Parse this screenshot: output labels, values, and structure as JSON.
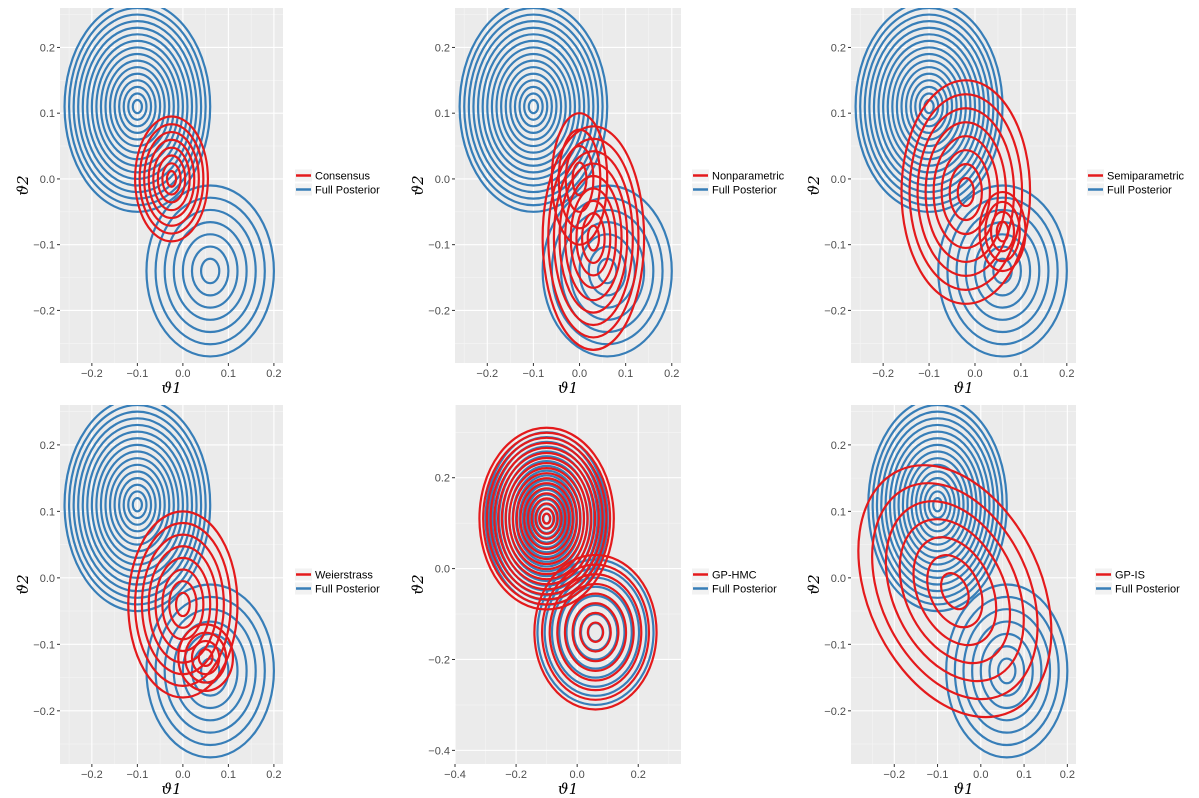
{
  "colors": {
    "method": "#e41a1c",
    "full_posterior": "#377eb8",
    "panel_bg": "#ebebeb",
    "grid_major": "#ffffff",
    "grid_minor": "#f5f5f5"
  },
  "chart_data": [
    {
      "type": "contour",
      "xlabel": "ϑ1",
      "ylabel": "ϑ2",
      "xlim": [
        -0.27,
        0.22
      ],
      "ylim": [
        -0.28,
        0.26
      ],
      "xticks": [
        "-0.2",
        "-0.1",
        "0.0",
        "0.1",
        "0.2"
      ],
      "xtick_values": [
        -0.2,
        -0.1,
        0.0,
        0.1,
        0.2
      ],
      "yticks": [
        "-0.2",
        "-0.1",
        "0.0",
        "0.1",
        "0.2"
      ],
      "ytick_values": [
        -0.2,
        -0.1,
        0.0,
        0.1,
        0.2
      ],
      "legend_position": "right",
      "series": [
        {
          "name": "Consensus",
          "color": "#e41a1c",
          "levels": 8,
          "modes": [
            {
              "cx": -0.025,
              "cy": 0.0,
              "rx": 0.08,
              "ry": 0.095,
              "rot": 0
            }
          ]
        },
        {
          "name": "Full Posterior",
          "color": "#377eb8",
          "levels": 16,
          "modes": [
            {
              "cx": -0.1,
              "cy": 0.11,
              "rx": 0.16,
              "ry": 0.16,
              "rot": 0
            },
            {
              "cx": 0.06,
              "cy": -0.14,
              "rx": 0.14,
              "ry": 0.13,
              "rot": 0
            }
          ]
        }
      ]
    },
    {
      "type": "contour",
      "xlabel": "ϑ1",
      "ylabel": "ϑ2",
      "xlim": [
        -0.27,
        0.22
      ],
      "ylim": [
        -0.28,
        0.26
      ],
      "xticks": [
        "-0.2",
        "-0.1",
        "0.0",
        "0.1",
        "0.2"
      ],
      "xtick_values": [
        -0.2,
        -0.1,
        0.0,
        0.1,
        0.2
      ],
      "yticks": [
        "-0.2",
        "-0.1",
        "0.0",
        "0.1",
        "0.2"
      ],
      "ytick_values": [
        -0.2,
        -0.1,
        0.0,
        0.1,
        0.2
      ],
      "legend_position": "right",
      "series": [
        {
          "name": "Nonparametric",
          "color": "#e41a1c",
          "levels": 9,
          "modes": [
            {
              "cx": 0.03,
              "cy": -0.09,
              "rx": 0.11,
              "ry": 0.17,
              "rot": 0
            },
            {
              "cx": 0.0,
              "cy": 0.0,
              "rx": 0.06,
              "ry": 0.1,
              "rot": 0
            }
          ]
        },
        {
          "name": "Full Posterior",
          "color": "#377eb8",
          "levels": 16,
          "modes": [
            {
              "cx": -0.1,
              "cy": 0.11,
              "rx": 0.16,
              "ry": 0.16,
              "rot": 0
            },
            {
              "cx": 0.06,
              "cy": -0.14,
              "rx": 0.14,
              "ry": 0.13,
              "rot": 0
            }
          ]
        }
      ]
    },
    {
      "type": "contour",
      "xlabel": "ϑ1",
      "ylabel": "ϑ2",
      "xlim": [
        -0.27,
        0.22
      ],
      "ylim": [
        -0.28,
        0.26
      ],
      "xticks": [
        "-0.2",
        "-0.1",
        "0.0",
        "0.1",
        "0.2"
      ],
      "xtick_values": [
        -0.2,
        -0.1,
        0.0,
        0.1,
        0.2
      ],
      "yticks": [
        "-0.2",
        "-0.1",
        "0.0",
        "0.1",
        "0.2"
      ],
      "ytick_values": [
        -0.2,
        -0.1,
        0.0,
        0.1,
        0.2
      ],
      "legend_position": "right",
      "series": [
        {
          "name": "Semiparametric",
          "color": "#e41a1c",
          "levels": 8,
          "modes": [
            {
              "cx": -0.02,
              "cy": -0.02,
              "rx": 0.14,
              "ry": 0.17,
              "rot": 0
            },
            {
              "cx": 0.06,
              "cy": -0.08,
              "rx": 0.05,
              "ry": 0.06,
              "rot": 0
            }
          ]
        },
        {
          "name": "Full Posterior",
          "color": "#377eb8",
          "levels": 16,
          "modes": [
            {
              "cx": -0.1,
              "cy": 0.11,
              "rx": 0.16,
              "ry": 0.16,
              "rot": 0
            },
            {
              "cx": 0.06,
              "cy": -0.14,
              "rx": 0.14,
              "ry": 0.13,
              "rot": 0
            }
          ]
        }
      ]
    },
    {
      "type": "contour",
      "xlabel": "ϑ1",
      "ylabel": "ϑ2",
      "xlim": [
        -0.27,
        0.22
      ],
      "ylim": [
        -0.28,
        0.26
      ],
      "xticks": [
        "-0.2",
        "-0.1",
        "0.0",
        "0.1",
        "0.2"
      ],
      "xtick_values": [
        -0.2,
        -0.1,
        0.0,
        0.1,
        0.2
      ],
      "yticks": [
        "-0.2",
        "-0.1",
        "0.0",
        "0.1",
        "0.2"
      ],
      "ytick_values": [
        -0.2,
        -0.1,
        0.0,
        0.1,
        0.2
      ],
      "legend_position": "right",
      "series": [
        {
          "name": "Weierstrass",
          "color": "#e41a1c",
          "levels": 8,
          "modes": [
            {
              "cx": 0.0,
              "cy": -0.04,
              "rx": 0.12,
              "ry": 0.14,
              "rot": 0
            },
            {
              "cx": 0.05,
              "cy": -0.12,
              "rx": 0.06,
              "ry": 0.05,
              "rot": 0
            }
          ]
        },
        {
          "name": "Full Posterior",
          "color": "#377eb8",
          "levels": 16,
          "modes": [
            {
              "cx": -0.1,
              "cy": 0.11,
              "rx": 0.16,
              "ry": 0.16,
              "rot": 0
            },
            {
              "cx": 0.06,
              "cy": -0.14,
              "rx": 0.14,
              "ry": 0.13,
              "rot": 0
            }
          ]
        }
      ]
    },
    {
      "type": "contour",
      "xlabel": "ϑ1",
      "ylabel": "ϑ2",
      "xlim": [
        -0.4,
        0.34
      ],
      "ylim": [
        -0.43,
        0.36
      ],
      "xticks": [
        "-0.4",
        "-0.2",
        "0.0",
        "0.2"
      ],
      "xtick_values": [
        -0.4,
        -0.2,
        0.0,
        0.2
      ],
      "yticks": [
        "-0.4",
        "-0.2",
        "0.0",
        "0.2"
      ],
      "ytick_values": [
        -0.4,
        -0.2,
        0.0,
        0.2
      ],
      "legend_position": "right",
      "series": [
        {
          "name": "GP-HMC",
          "color": "#e41a1c",
          "levels": 18,
          "modes": [
            {
              "cx": -0.1,
              "cy": 0.11,
              "rx": 0.22,
              "ry": 0.2,
              "rot": 0
            },
            {
              "cx": 0.06,
              "cy": -0.14,
              "rx": 0.2,
              "ry": 0.17,
              "rot": 0
            }
          ]
        },
        {
          "name": "Full Posterior",
          "color": "#377eb8",
          "levels": 18,
          "modes": [
            {
              "cx": -0.1,
              "cy": 0.11,
              "rx": 0.2,
              "ry": 0.19,
              "rot": 0
            },
            {
              "cx": 0.06,
              "cy": -0.14,
              "rx": 0.19,
              "ry": 0.16,
              "rot": 0
            }
          ]
        }
      ]
    },
    {
      "type": "contour",
      "xlabel": "ϑ1",
      "ylabel": "ϑ2",
      "xlim": [
        -0.3,
        0.22
      ],
      "ylim": [
        -0.28,
        0.26
      ],
      "xticks": [
        "-0.2",
        "-0.1",
        "0.0",
        "0.1",
        "0.2"
      ],
      "xtick_values": [
        -0.2,
        -0.1,
        0.0,
        0.1,
        0.2
      ],
      "yticks": [
        "-0.2",
        "-0.1",
        "0.0",
        "0.1",
        "0.2"
      ],
      "ytick_values": [
        -0.2,
        -0.1,
        0.0,
        0.1,
        0.2
      ],
      "legend_position": "right",
      "series": [
        {
          "name": "GP-IS",
          "color": "#e41a1c",
          "levels": 7,
          "modes": [
            {
              "cx": -0.06,
              "cy": -0.02,
              "rx": 0.2,
              "ry": 0.2,
              "rot": -25
            }
          ]
        },
        {
          "name": "Full Posterior",
          "color": "#377eb8",
          "levels": 16,
          "modes": [
            {
              "cx": -0.1,
              "cy": 0.11,
              "rx": 0.16,
              "ry": 0.16,
              "rot": 0
            },
            {
              "cx": 0.06,
              "cy": -0.14,
              "rx": 0.14,
              "ry": 0.13,
              "rot": 0
            }
          ]
        }
      ]
    }
  ]
}
